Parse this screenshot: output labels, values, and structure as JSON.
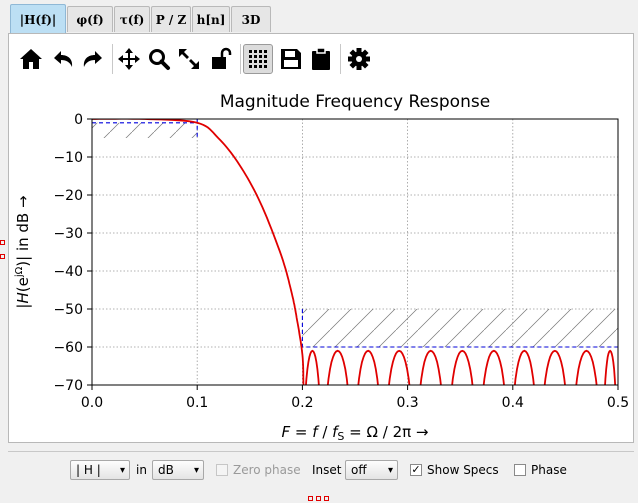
{
  "tabs": [
    {
      "label": "|H(f)|",
      "active": true
    },
    {
      "label": "φ(f)",
      "active": false
    },
    {
      "label": "τ(f)",
      "active": false
    },
    {
      "label": "P / Z",
      "active": false
    },
    {
      "label": "h[n]",
      "active": false
    },
    {
      "label": "3D",
      "active": false
    }
  ],
  "toolbar": {
    "icons": [
      "home-icon",
      "undo-icon",
      "redo-icon",
      "pan-icon",
      "zoom-icon",
      "zoom-full-icon",
      "lock-icon",
      "grid-icon",
      "save-icon",
      "clipboard-icon",
      "settings-icon"
    ]
  },
  "chart_data": {
    "type": "line",
    "title": "Magnitude Frequency Response",
    "xlabel": "F = f / f_S = Ω / 2π  →",
    "ylabel": "|H(e^jΩ)| in dB  →",
    "xlim": [
      0.0,
      0.5
    ],
    "ylim": [
      -70,
      0
    ],
    "grid": true,
    "xticks": [
      "0.0",
      "0.1",
      "0.2",
      "0.3",
      "0.4",
      "0.5"
    ],
    "yticks": [
      "0",
      "−10",
      "−20",
      "−30",
      "−40",
      "−50",
      "−60",
      "−70"
    ],
    "passband_edge": 0.1,
    "stopband_edge": 0.2,
    "passband_ripple_db": -1,
    "stopband_atten_db": -60,
    "response_color": "#e00000",
    "spec_color": "#0000dd",
    "response_points": [
      [
        0.0,
        0
      ],
      [
        0.05,
        0
      ],
      [
        0.1,
        -1
      ],
      [
        0.12,
        -5
      ],
      [
        0.14,
        -12
      ],
      [
        0.16,
        -22
      ],
      [
        0.18,
        -36
      ],
      [
        0.19,
        -46
      ],
      [
        0.195,
        -53
      ],
      [
        0.2,
        -62
      ],
      [
        0.201,
        -70
      ]
    ],
    "stopband_lobes": [
      [
        0.2,
        0.219
      ],
      [
        0.219,
        0.248
      ],
      [
        0.248,
        0.277
      ],
      [
        0.277,
        0.307
      ],
      [
        0.307,
        0.337
      ],
      [
        0.337,
        0.367
      ],
      [
        0.367,
        0.397
      ],
      [
        0.397,
        0.425
      ],
      [
        0.425,
        0.455
      ],
      [
        0.455,
        0.485
      ],
      [
        0.485,
        0.5
      ]
    ],
    "stopband_lobe_peak_db": -61
  },
  "controls": {
    "mag_select": "| H |",
    "in_label": "in",
    "unit_select": "dB",
    "zero_phase_label": "Zero phase",
    "inset_label": "Inset",
    "inset_select": "off",
    "show_specs_label": "Show Specs",
    "show_specs_checked": "✓",
    "phase_label": "Phase"
  }
}
